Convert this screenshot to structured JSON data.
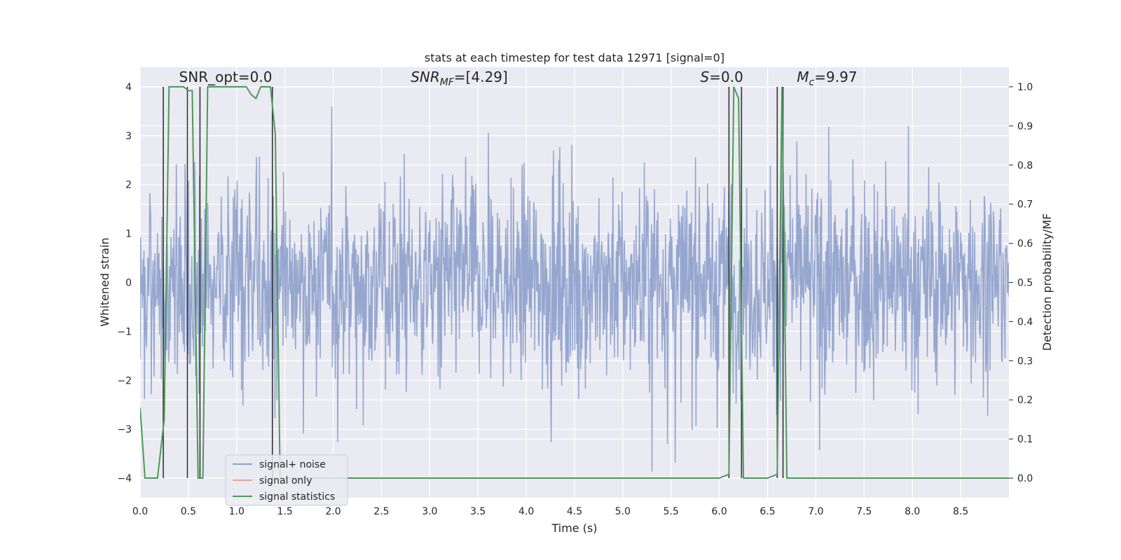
{
  "chart_data": {
    "type": "line",
    "title": "stats at each timestep for test data 12971 [signal=0]",
    "xlabel": "Time (s)",
    "ylabel": "Whitened strain",
    "y2label": "Detection probability/MF",
    "xlim": [
      0,
      9
    ],
    "ylim": [
      -4.4,
      4.4
    ],
    "y2lim": [
      -0.05,
      1.05
    ],
    "xticks": [
      "0.0",
      "0.5",
      "1.0",
      "1.5",
      "2.0",
      "2.5",
      "3.0",
      "3.5",
      "4.0",
      "4.5",
      "5.0",
      "5.5",
      "6.0",
      "6.5",
      "7.0",
      "7.5",
      "8.0",
      "8.5"
    ],
    "yticks": [
      "−4",
      "−3",
      "−2",
      "−1",
      "0",
      "1",
      "2",
      "3",
      "4"
    ],
    "y2ticks": [
      "0.0",
      "0.1",
      "0.2",
      "0.3",
      "0.4",
      "0.5",
      "0.6",
      "0.7",
      "0.8",
      "0.9",
      "1.0"
    ],
    "grid": true,
    "legend_position": "lower-left",
    "colors": {
      "plot_bg": "#eaeaf2",
      "grid": "#ffffff",
      "noise": "#8da0cb",
      "signal_only": "#e5a689",
      "stats": "#4c9a57",
      "markers": "#333333"
    },
    "annotations": [
      {
        "text": "SNR_opt=0.0",
        "x": 0.2,
        "y": 4.1
      },
      {
        "text": "SNR_MF=[4.29]",
        "x": 2.6,
        "y": 4.1
      },
      {
        "text": "S=0.0",
        "x": 5.6,
        "y": 4.1
      },
      {
        "text": "M_c=9.97",
        "x": 6.6,
        "y": 4.1
      }
    ],
    "series": [
      {
        "name": "signal+ noise",
        "style": "dense noise trace, sample amplitude approx ±1.5, peaks up to about ±3.9",
        "amplitude_rms": 0.75,
        "peak_range": [
          -3.9,
          4.0
        ]
      },
      {
        "name": "signal only",
        "values": []
      },
      {
        "name": "signal statistics",
        "x": [
          0.0,
          0.05,
          0.18,
          0.25,
          0.3,
          0.37,
          0.45,
          0.5,
          0.54,
          0.6,
          0.65,
          0.7,
          0.8,
          1.0,
          1.1,
          1.15,
          1.2,
          1.25,
          1.35,
          1.4,
          1.45,
          1.5,
          1.55,
          2.0,
          3.0,
          4.0,
          5.0,
          6.0,
          6.1,
          6.15,
          6.2,
          6.25,
          6.3,
          6.5,
          6.6,
          6.65,
          6.7,
          6.75,
          6.8,
          7.0,
          8.0,
          9.0
        ],
        "values": [
          0.18,
          0.0,
          0.0,
          0.15,
          1.0,
          1.0,
          1.0,
          0.99,
          0.99,
          0.0,
          0.0,
          1.0,
          1.0,
          1.0,
          1.0,
          0.98,
          0.97,
          1.0,
          1.0,
          0.88,
          0.0,
          0.0,
          0.0,
          0.0,
          0.0,
          0.0,
          0.0,
          0.0,
          0.01,
          1.0,
          0.97,
          0.0,
          0.0,
          0.0,
          0.01,
          1.0,
          0.0,
          0.0,
          0.0,
          0.0,
          0.0,
          0.0
        ]
      }
    ],
    "marker_lines_x": [
      0.24,
      0.49,
      0.62,
      1.37,
      6.1,
      6.23,
      6.6,
      6.66
    ]
  }
}
